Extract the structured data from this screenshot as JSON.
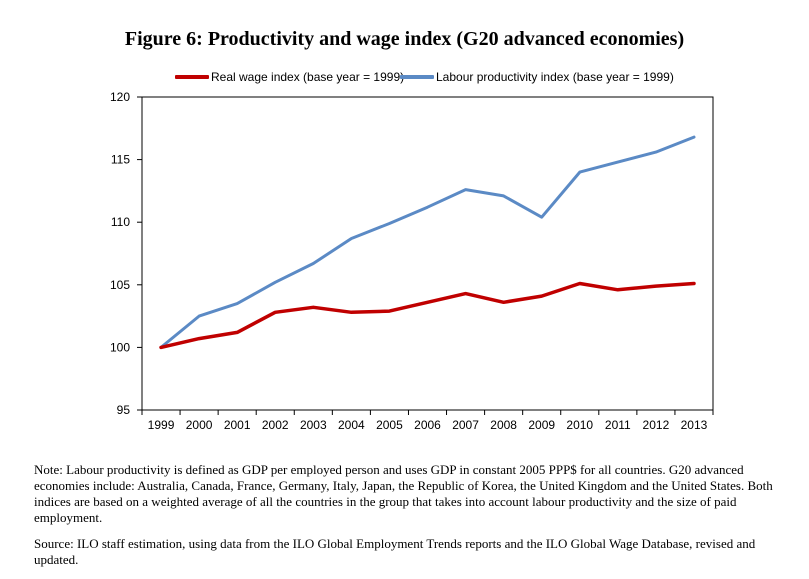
{
  "chart_data": {
    "type": "line",
    "title": "Figure 6:  Productivity and wage index (G20 advanced economies)",
    "xlabel": "",
    "ylabel": "",
    "categories": [
      "1999",
      "2000",
      "2001",
      "2002",
      "2003",
      "2004",
      "2005",
      "2006",
      "2007",
      "2008",
      "2009",
      "2010",
      "2011",
      "2012",
      "2013"
    ],
    "ylim": [
      95,
      120
    ],
    "yticks": [
      "95",
      "100",
      "105",
      "110",
      "115",
      "120"
    ],
    "legend_position": "top",
    "grid": false,
    "series": [
      {
        "name": "Real wage index (base year = 1999)",
        "color": "#c00000",
        "values": [
          100,
          100.7,
          101.2,
          102.8,
          103.2,
          102.8,
          102.9,
          103.6,
          104.3,
          103.6,
          104.1,
          105.1,
          104.6,
          104.9,
          105.1
        ]
      },
      {
        "name": "Labour productivity index (base year = 1999)",
        "color": "#5b8ac5",
        "values": [
          100,
          102.5,
          103.5,
          105.2,
          106.7,
          108.7,
          109.9,
          111.2,
          112.6,
          112.1,
          110.4,
          114.0,
          114.8,
          115.6,
          116.8
        ]
      }
    ]
  },
  "notes": {
    "note": "Note: Labour productivity is defined as GDP per employed person and uses GDP in constant 2005 PPP$ for all countries.  G20 advanced economies include: Australia, Canada, France, Germany, Italy, Japan, the Republic of Korea, the United Kingdom and the United States.  Both indices are based on a weighted average of all the countries in the group that takes into account labour productivity and the size of paid employment.",
    "source": "Source: ILO staff estimation, using data from the ILO Global Employment Trends reports and the ILO Global Wage Database, revised and updated."
  }
}
